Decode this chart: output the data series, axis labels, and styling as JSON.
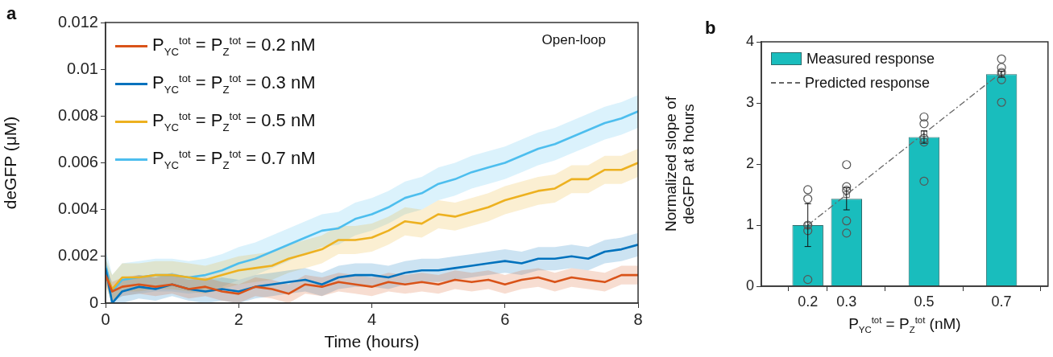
{
  "chart_data": [
    {
      "type": "line",
      "title": "a",
      "xlabel": "Time (hours)",
      "ylabel": "deGFP (μM)",
      "annotations": [
        "Open-loop"
      ],
      "xlim": [
        0,
        8
      ],
      "xticks": [
        0,
        2,
        4,
        6,
        8
      ],
      "ylim": [
        0,
        0.012
      ],
      "yticks": [
        0,
        0.002,
        0.004,
        0.006,
        0.008,
        0.01,
        0.012
      ],
      "grid": false,
      "legend": "top left",
      "x": [
        0,
        0.1,
        0.25,
        0.5,
        0.75,
        1,
        1.25,
        1.5,
        1.75,
        2,
        2.25,
        2.5,
        2.75,
        3,
        3.25,
        3.5,
        3.75,
        4,
        4.25,
        4.5,
        4.75,
        5,
        5.25,
        5.5,
        5.75,
        6,
        6.25,
        6.5,
        6.75,
        7,
        7.25,
        7.5,
        7.75,
        8
      ],
      "series": [
        {
          "name": "P$_{YC}$$^{tot}$ = P$_{Z}$$^{tot}$ = 0.2 nM",
          "color": "#d95319",
          "values": [
            0.0012,
            0.0005,
            0.0007,
            0.0008,
            0.0007,
            0.0008,
            0.0006,
            0.0007,
            0.0005,
            0.0004,
            0.0007,
            0.0006,
            0.0004,
            0.0008,
            0.0007,
            0.0009,
            0.0008,
            0.0007,
            0.0009,
            0.0008,
            0.0009,
            0.0008,
            0.001,
            0.0009,
            0.001,
            0.0008,
            0.001,
            0.0011,
            0.0009,
            0.0011,
            0.001,
            0.0009,
            0.0012,
            0.0012
          ],
          "lower": [
            0.0008,
            0.0001,
            0.0003,
            0.0004,
            0.0003,
            0.0004,
            0.0002,
            0.0003,
            0.0001,
            0,
            0.0003,
            0.0002,
            0,
            0.0004,
            0.0003,
            0.0005,
            0.0004,
            0.0003,
            0.0005,
            0.0004,
            0.0005,
            0.0004,
            0.0006,
            0.0005,
            0.0006,
            0.0004,
            0.0006,
            0.0007,
            0.0005,
            0.0007,
            0.0006,
            0.0005,
            0.0008,
            0.0008
          ],
          "upper": [
            0.0016,
            0.0009,
            0.0011,
            0.0012,
            0.0011,
            0.0012,
            0.001,
            0.0011,
            0.0009,
            0.0008,
            0.0011,
            0.001,
            0.0008,
            0.0012,
            0.0011,
            0.0013,
            0.0012,
            0.0011,
            0.0013,
            0.0012,
            0.0013,
            0.0012,
            0.0014,
            0.0013,
            0.0014,
            0.0012,
            0.0014,
            0.0015,
            0.0013,
            0.0015,
            0.0014,
            0.0013,
            0.0016,
            0.0016
          ]
        },
        {
          "name": "P$_{YC}$$^{tot}$ = P$_{Z}$$^{tot}$ = 0.3 nM",
          "color": "#0072bd",
          "values": [
            0.0015,
            0,
            0.0005,
            0.0007,
            0.0006,
            0.0008,
            0.0006,
            0.0005,
            0.0006,
            0.0005,
            0.0007,
            0.0008,
            0.0009,
            0.001,
            0.0008,
            0.0011,
            0.0012,
            0.0012,
            0.0011,
            0.0013,
            0.0014,
            0.0014,
            0.0015,
            0.0016,
            0.0017,
            0.0018,
            0.0017,
            0.0019,
            0.0019,
            0.002,
            0.0019,
            0.0022,
            0.0023,
            0.0025
          ],
          "lower": [
            0.001,
            0,
            0,
            0.0002,
            0.0001,
            0.0003,
            0.0001,
            0,
            0.0001,
            0,
            0.0002,
            0.0003,
            0.0004,
            0.0005,
            0.0003,
            0.0006,
            0.0007,
            0.0007,
            0.0006,
            0.0008,
            0.0009,
            0.0009,
            0.001,
            0.0011,
            0.0012,
            0.0013,
            0.0012,
            0.0014,
            0.0014,
            0.0015,
            0.0014,
            0.0017,
            0.0018,
            0.002
          ],
          "upper": [
            0.002,
            0.0005,
            0.001,
            0.0012,
            0.0011,
            0.0013,
            0.0011,
            0.001,
            0.0011,
            0.001,
            0.0012,
            0.0013,
            0.0014,
            0.0015,
            0.0013,
            0.0016,
            0.0017,
            0.0017,
            0.0016,
            0.0018,
            0.0019,
            0.0019,
            0.002,
            0.0021,
            0.0022,
            0.0023,
            0.0022,
            0.0024,
            0.0024,
            0.0025,
            0.0024,
            0.0027,
            0.0028,
            0.003
          ]
        },
        {
          "name": "P$_{YC}$$^{tot}$ = P$_{Z}$$^{tot}$ = 0.5 nM",
          "color": "#edb120",
          "values": [
            0.0013,
            0.0006,
            0.0011,
            0.0011,
            0.0012,
            0.0012,
            0.0011,
            0.001,
            0.0012,
            0.0014,
            0.0015,
            0.0016,
            0.0019,
            0.0021,
            0.0023,
            0.0027,
            0.0027,
            0.0028,
            0.0031,
            0.0035,
            0.0034,
            0.0038,
            0.0037,
            0.0039,
            0.0041,
            0.0044,
            0.0046,
            0.0048,
            0.0049,
            0.0053,
            0.0053,
            0.0057,
            0.0057,
            0.006
          ],
          "lower": [
            0.0007,
            0,
            0.0005,
            0.0005,
            0.0006,
            0.0006,
            0.0005,
            0.0004,
            0.0006,
            0.0008,
            0.0009,
            0.001,
            0.0013,
            0.0015,
            0.0017,
            0.0021,
            0.0021,
            0.0022,
            0.0025,
            0.0029,
            0.0028,
            0.0032,
            0.0031,
            0.0033,
            0.0035,
            0.0038,
            0.004,
            0.0042,
            0.0043,
            0.0047,
            0.0047,
            0.0051,
            0.0051,
            0.0054
          ],
          "upper": [
            0.0019,
            0.0012,
            0.0017,
            0.0017,
            0.0018,
            0.0018,
            0.0017,
            0.0016,
            0.0018,
            0.002,
            0.0021,
            0.0022,
            0.0025,
            0.0027,
            0.0029,
            0.0033,
            0.0033,
            0.0034,
            0.0037,
            0.0041,
            0.004,
            0.0044,
            0.0043,
            0.0045,
            0.0047,
            0.005,
            0.0052,
            0.0054,
            0.0055,
            0.0059,
            0.0059,
            0.0063,
            0.0063,
            0.0066
          ]
        },
        {
          "name": "P$_{YC}$$^{tot}$ = P$_{Z}$$^{tot}$ = 0.7 nM",
          "color": "#4dbeee",
          "values": [
            0.0016,
            0.0005,
            0.001,
            0.0011,
            0.0012,
            0.0012,
            0.0011,
            0.0012,
            0.0014,
            0.0017,
            0.0019,
            0.0022,
            0.0025,
            0.0028,
            0.0031,
            0.0032,
            0.0036,
            0.0038,
            0.0041,
            0.0045,
            0.0047,
            0.0051,
            0.0053,
            0.0056,
            0.0058,
            0.006,
            0.0063,
            0.0066,
            0.0068,
            0.0071,
            0.0074,
            0.0077,
            0.0079,
            0.0082
          ],
          "lower": [
            0.0009,
            0,
            0.0003,
            0.0004,
            0.0005,
            0.0005,
            0.0004,
            0.0005,
            0.0007,
            0.001,
            0.0012,
            0.0015,
            0.0018,
            0.0021,
            0.0024,
            0.0025,
            0.0029,
            0.0031,
            0.0034,
            0.0038,
            0.004,
            0.0044,
            0.0046,
            0.0049,
            0.0051,
            0.0053,
            0.0056,
            0.0059,
            0.0061,
            0.0064,
            0.0067,
            0.007,
            0.0072,
            0.0075
          ],
          "upper": [
            0.0023,
            0.0012,
            0.0017,
            0.0018,
            0.0019,
            0.0019,
            0.0018,
            0.0019,
            0.0021,
            0.0024,
            0.0026,
            0.0029,
            0.0032,
            0.0035,
            0.0038,
            0.0039,
            0.0043,
            0.0045,
            0.0048,
            0.0052,
            0.0054,
            0.0058,
            0.006,
            0.0063,
            0.0065,
            0.0067,
            0.007,
            0.0073,
            0.0075,
            0.0078,
            0.0081,
            0.0084,
            0.0086,
            0.0089
          ]
        }
      ]
    },
    {
      "type": "bar",
      "title": "b",
      "xlabel": "P$_{YC}$$^{tot}$ = P$_{Z}$$^{tot}$ (nM)",
      "ylabel": "Normalized slope of deGFP at 8 hours",
      "xlim": [
        0.08,
        0.82
      ],
      "xticks": [
        0.2,
        0.3,
        0.5,
        0.7
      ],
      "ylim": [
        0,
        4
      ],
      "yticks": [
        0,
        1,
        2,
        3,
        4
      ],
      "grid": false,
      "legend": "top left",
      "x": [
        0.2,
        0.3,
        0.5,
        0.7
      ],
      "series": [
        {
          "name": "Measured response",
          "color": "#19bdbd",
          "values": [
            1.0,
            1.43,
            2.44,
            3.47
          ],
          "errors": [
            0.35,
            0.18,
            0.1,
            0.05
          ]
        },
        {
          "type": "scatter",
          "color": "#555555",
          "marker": "circle",
          "x": [
            0.2,
            0.2,
            0.2,
            0.2,
            0.2,
            0.3,
            0.3,
            0.3,
            0.3,
            0.3,
            0.5,
            0.5,
            0.5,
            0.5,
            0.5,
            0.7,
            0.7,
            0.7,
            0.7,
            0.7
          ],
          "values": [
            1.58,
            1.43,
            1.0,
            0.91,
            0.11,
            1.99,
            1.63,
            1.57,
            1.07,
            0.87,
            2.77,
            2.66,
            2.42,
            2.36,
            1.72,
            3.72,
            3.58,
            3.5,
            3.38,
            3.01
          ]
        },
        {
          "name": "Predicted response",
          "type": "line",
          "color": "#666666",
          "line_style": "dashed",
          "marker": "square",
          "values": [
            1.0,
            1.5,
            2.5,
            3.5
          ]
        }
      ]
    }
  ]
}
